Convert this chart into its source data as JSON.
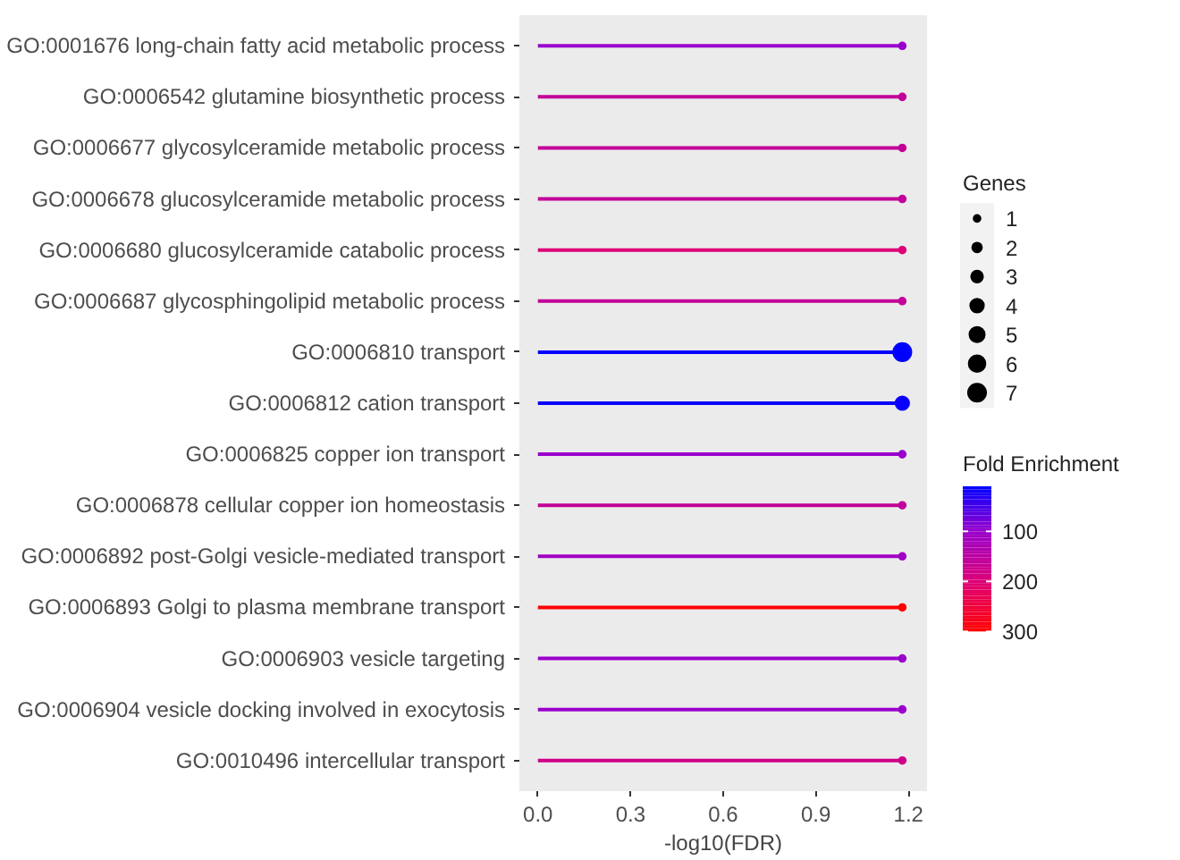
{
  "chart_data": {
    "type": "lollipop",
    "orientation": "horizontal",
    "xlabel": "-log10(FDR)",
    "categories": [
      "GO:0001676 long-chain fatty acid metabolic process",
      "GO:0006542 glutamine biosynthetic process",
      "GO:0006677 glycosylceramide metabolic process",
      "GO:0006678 glucosylceramide metabolic process",
      "GO:0006680 glucosylceramide catabolic process",
      "GO:0006687 glycosphingolipid metabolic process",
      "GO:0006810 transport",
      "GO:0006812 cation transport",
      "GO:0006825 copper ion transport",
      "GO:0006878 cellular copper ion homeostasis",
      "GO:0006892 post-Golgi vesicle-mediated transport",
      "GO:0006893 Golgi to plasma membrane transport",
      "GO:0006903 vesicle targeting",
      "GO:0006904 vesicle docking involved in exocytosis",
      "GO:0010496 intercellular transport"
    ],
    "values": [
      1.18,
      1.18,
      1.18,
      1.18,
      1.18,
      1.18,
      1.18,
      1.18,
      1.18,
      1.18,
      1.18,
      1.18,
      1.18,
      1.18,
      1.18
    ],
    "sizes": [
      1,
      1,
      1,
      1,
      1,
      1,
      7,
      4,
      1,
      1,
      1,
      1,
      1,
      1,
      1
    ],
    "size_legend": [
      1,
      2,
      3,
      4,
      5,
      6,
      7
    ],
    "legend_title": "Genes",
    "cvalues": [
      100,
      160,
      160,
      160,
      200,
      160,
      10,
      15,
      100,
      160,
      110,
      300,
      100,
      100,
      180
    ],
    "clabel": "Fold Enrichment",
    "clim": [
      10,
      300
    ],
    "cticks": [
      100,
      200,
      300
    ],
    "xlim": [
      -0.06,
      1.26
    ],
    "xticks": [
      {
        "value": 0,
        "label": "0.0"
      },
      0.3,
      0.6,
      0.9,
      1.2
    ],
    "grid": false
  }
}
